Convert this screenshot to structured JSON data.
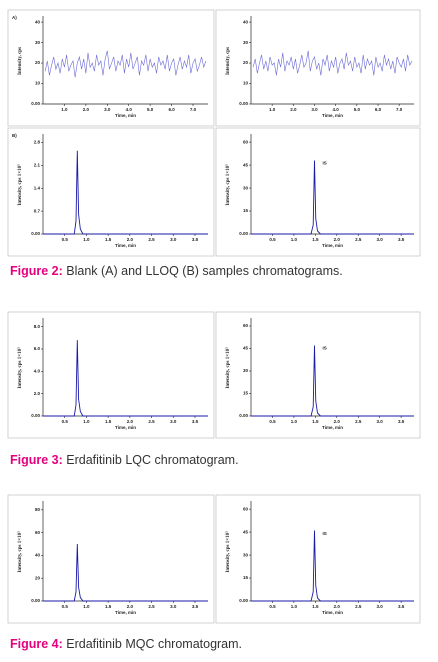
{
  "figures": [
    {
      "charts": [
        {
          "type": "line",
          "panel_label": "A)",
          "ylabel": "Intensity, cps",
          "xlabel": "Time, min",
          "xlim": [
            0,
            7.7
          ],
          "ylim": [
            0,
            42
          ],
          "xticks": [
            {
              "value": 1,
              "label": "1.0"
            },
            {
              "value": 2,
              "label": "2.0"
            },
            {
              "value": 3,
              "label": "3.0"
            },
            {
              "value": 4,
              "label": "4.0"
            },
            {
              "value": 5,
              "label": "5.0"
            },
            {
              "value": 6,
              "label": "6.0"
            },
            {
              "value": 7,
              "label": "7.0"
            }
          ],
          "yticks": [
            {
              "value": 0,
              "label": "0.00"
            },
            10,
            20,
            30,
            40
          ],
          "series": [
            {
              "color": "#6a6ad8",
              "x": [
                0.1,
                0.2,
                0.3,
                0.4,
                0.5,
                0.6,
                0.7,
                0.8,
                0.9,
                1.0,
                1.1,
                1.2,
                1.3,
                1.4,
                1.5,
                1.6,
                1.7,
                1.8,
                1.9,
                2.0,
                2.1,
                2.2,
                2.3,
                2.4,
                2.5,
                2.6,
                2.7,
                2.8,
                2.9,
                3.0,
                3.1,
                3.2,
                3.3,
                3.4,
                3.5,
                3.6,
                3.7,
                3.8,
                3.9,
                4.0,
                4.1,
                4.2,
                4.3,
                4.4,
                4.5,
                4.6,
                4.7,
                4.8,
                4.9,
                5.0,
                5.1,
                5.2,
                5.3,
                5.4,
                5.5,
                5.6,
                5.7,
                5.8,
                5.9,
                6.0,
                6.1,
                6.2,
                6.3,
                6.4,
                6.5,
                6.6,
                6.7,
                6.8,
                6.9,
                7.0,
                7.1,
                7.2,
                7.3,
                7.4,
                7.5,
                7.6
              ],
              "values": [
                16,
                21,
                14,
                19,
                23,
                17,
                20,
                15,
                22,
                18,
                24,
                16,
                19,
                21,
                13,
                20,
                23,
                17,
                22,
                15,
                25,
                18,
                20,
                16,
                24,
                19,
                21,
                14,
                22,
                26,
                17,
                20,
                23,
                16,
                21,
                19,
                24,
                15,
                22,
                18,
                25,
                17,
                20,
                23,
                14,
                21,
                19,
                24,
                16,
                22,
                18,
                20,
                15,
                23,
                19,
                21,
                17,
                24,
                16,
                20,
                22,
                14,
                19,
                23,
                17,
                21,
                18,
                24,
                15,
                20,
                22,
                16,
                19,
                23,
                18,
                21
              ]
            }
          ]
        },
        {
          "type": "line",
          "ylabel": "Intensity, cps",
          "xlabel": "Time, min",
          "xlim": [
            0,
            7.7
          ],
          "ylim": [
            0,
            42
          ],
          "xticks": [
            {
              "value": 1,
              "label": "1.0"
            },
            {
              "value": 2,
              "label": "2.0"
            },
            {
              "value": 3,
              "label": "3.0"
            },
            {
              "value": 4,
              "label": "4.0"
            },
            {
              "value": 5,
              "label": "5.0"
            },
            {
              "value": 6,
              "label": "6.0"
            },
            {
              "value": 7,
              "label": "7.0"
            }
          ],
          "yticks": [
            {
              "value": 0,
              "label": "0.00"
            },
            10,
            20,
            30,
            40
          ],
          "series": [
            {
              "color": "#6a6ad8",
              "x": [
                0.1,
                0.2,
                0.3,
                0.4,
                0.5,
                0.6,
                0.7,
                0.8,
                0.9,
                1.0,
                1.1,
                1.2,
                1.3,
                1.4,
                1.5,
                1.6,
                1.7,
                1.8,
                1.9,
                2.0,
                2.1,
                2.2,
                2.3,
                2.4,
                2.5,
                2.6,
                2.7,
                2.8,
                2.9,
                3.0,
                3.1,
                3.2,
                3.3,
                3.4,
                3.5,
                3.6,
                3.7,
                3.8,
                3.9,
                4.0,
                4.1,
                4.2,
                4.3,
                4.4,
                4.5,
                4.6,
                4.7,
                4.8,
                4.9,
                5.0,
                5.1,
                5.2,
                5.3,
                5.4,
                5.5,
                5.6,
                5.7,
                5.8,
                5.9,
                6.0,
                6.1,
                6.2,
                6.3,
                6.4,
                6.5,
                6.6,
                6.7,
                6.8,
                6.9,
                7.0,
                7.1,
                7.2,
                7.3,
                7.4,
                7.5,
                7.6
              ],
              "values": [
                18,
                22,
                15,
                20,
                24,
                17,
                21,
                16,
                23,
                19,
                20,
                14,
                22,
                18,
                25,
                16,
                21,
                19,
                23,
                17,
                22,
                15,
                19,
                24,
                18,
                20,
                26,
                16,
                21,
                23,
                17,
                20,
                14,
                22,
                19,
                24,
                16,
                21,
                18,
                23,
                15,
                20,
                22,
                17,
                25,
                19,
                21,
                16,
                23,
                18,
                20,
                15,
                24,
                17,
                22,
                19,
                21,
                14,
                23,
                18,
                20,
                16,
                24,
                19,
                22,
                17,
                21,
                15,
                23,
                20,
                18,
                22,
                16,
                24,
                19,
                21
              ]
            }
          ]
        },
        {
          "type": "line",
          "panel_label": "B)",
          "ylabel": "Intensity, cps 1×10³",
          "xlabel": "Time, min",
          "xlim": [
            0,
            3.8
          ],
          "ylim": [
            0,
            3.0
          ],
          "xticks": [
            0.5,
            {
              "value": 1,
              "label": "1.0"
            },
            1.5,
            {
              "value": 2,
              "label": "2.0"
            },
            2.5,
            {
              "value": 3,
              "label": "3.0"
            },
            3.5
          ],
          "yticks": [
            {
              "value": 0,
              "label": "0.00"
            },
            0.7,
            1.4,
            2.1,
            2.8
          ],
          "series": [
            {
              "color": "#1a1aa8",
              "x": [
                0,
                0.72,
                0.76,
                0.79,
                0.82,
                0.86,
                0.92,
                3.8
              ],
              "values": [
                0,
                0,
                0.4,
                2.55,
                0.6,
                0.15,
                0,
                0
              ]
            }
          ]
        },
        {
          "type": "line",
          "annotation": "IS",
          "ylabel": "Intensity, cps 1×10³",
          "xlabel": "Time, min",
          "xlim": [
            0,
            3.8
          ],
          "ylim": [
            0,
            64
          ],
          "xticks": [
            0.5,
            {
              "value": 1,
              "label": "1.0"
            },
            1.5,
            {
              "value": 2,
              "label": "2.0"
            },
            2.5,
            {
              "value": 3,
              "label": "3.0"
            },
            3.5
          ],
          "yticks": [
            {
              "value": 0,
              "label": "0.00"
            },
            15,
            30,
            45,
            60
          ],
          "series": [
            {
              "color": "#1a1aa8",
              "x": [
                0,
                1.4,
                1.45,
                1.48,
                1.51,
                1.55,
                1.62,
                3.8
              ],
              "values": [
                0,
                0,
                6,
                48,
                10,
                2,
                0,
                0
              ]
            }
          ]
        }
      ],
      "caption_label": "Figure 2:",
      "caption_text": " Blank (A) and LLOQ (B) samples chromatograms."
    },
    {
      "charts": [
        {
          "type": "line",
          "ylabel": "Intensity, cps 1×10³",
          "xlabel": "Time, min",
          "xlim": [
            0,
            3.8
          ],
          "ylim": [
            0,
            8.6
          ],
          "xticks": [
            0.5,
            {
              "value": 1,
              "label": "1.0"
            },
            1.5,
            {
              "value": 2,
              "label": "2.0"
            },
            2.5,
            {
              "value": 3,
              "label": "3.0"
            },
            3.5
          ],
          "yticks": [
            {
              "value": 0,
              "label": "0.00"
            },
            {
              "value": 2,
              "label": "2.0"
            },
            {
              "value": 4,
              "label": "4.0"
            },
            {
              "value": 6,
              "label": "6.0"
            },
            {
              "value": 8,
              "label": "8.0"
            }
          ],
          "series": [
            {
              "color": "#1a1aa8",
              "x": [
                0,
                0.72,
                0.76,
                0.79,
                0.82,
                0.86,
                0.92,
                3.8
              ],
              "values": [
                0,
                0,
                1,
                6.8,
                1.5,
                0.4,
                0,
                0
              ]
            }
          ]
        },
        {
          "type": "line",
          "annotation": "IS",
          "ylabel": "Intensity, cps 1×10³",
          "xlabel": "Time, min",
          "xlim": [
            0,
            3.8
          ],
          "ylim": [
            0,
            64
          ],
          "xticks": [
            0.5,
            {
              "value": 1,
              "label": "1.0"
            },
            1.5,
            {
              "value": 2,
              "label": "2.0"
            },
            2.5,
            {
              "value": 3,
              "label": "3.0"
            },
            3.5
          ],
          "yticks": [
            {
              "value": 0,
              "label": "0.00"
            },
            15,
            30,
            45,
            60
          ],
          "series": [
            {
              "color": "#1a1aa8",
              "x": [
                0,
                1.4,
                1.45,
                1.48,
                1.51,
                1.55,
                1.62,
                3.8
              ],
              "values": [
                0,
                0,
                6,
                47,
                10,
                2,
                0,
                0
              ]
            }
          ]
        }
      ],
      "caption_label": "Figure 3:",
      "caption_text": " Erdafitinib LQC chromatogram."
    },
    {
      "charts": [
        {
          "type": "line",
          "ylabel": "Intensity, cps 1×10³",
          "xlabel": "Time, min",
          "xlim": [
            0,
            3.8
          ],
          "ylim": [
            0,
            86
          ],
          "xticks": [
            0.5,
            {
              "value": 1,
              "label": "1.0"
            },
            1.5,
            {
              "value": 2,
              "label": "2.0"
            },
            2.5,
            {
              "value": 3,
              "label": "3.0"
            },
            3.5
          ],
          "yticks": [
            {
              "value": 0,
              "label": "0.00"
            },
            20,
            40,
            60,
            80
          ],
          "series": [
            {
              "color": "#1a1aa8",
              "x": [
                0,
                0.72,
                0.76,
                0.79,
                0.82,
                0.86,
                0.92,
                3.8
              ],
              "values": [
                0,
                0,
                8,
                50,
                12,
                3,
                0,
                0
              ]
            }
          ]
        },
        {
          "type": "line",
          "annotation": "IS",
          "ylabel": "Intensity, cps 1×10³",
          "xlabel": "Time, min",
          "xlim": [
            0,
            3.8
          ],
          "ylim": [
            0,
            64
          ],
          "xticks": [
            0.5,
            {
              "value": 1,
              "label": "1.0"
            },
            1.5,
            {
              "value": 2,
              "label": "2.0"
            },
            2.5,
            {
              "value": 3,
              "label": "3.0"
            },
            3.5
          ],
          "yticks": [
            {
              "value": 0,
              "label": "0.00"
            },
            15,
            30,
            45,
            60
          ],
          "series": [
            {
              "color": "#1a1aa8",
              "x": [
                0,
                1.4,
                1.45,
                1.48,
                1.51,
                1.55,
                1.62,
                3.8
              ],
              "values": [
                0,
                0,
                6,
                46,
                10,
                2,
                0,
                0
              ]
            }
          ]
        }
      ],
      "caption_label": "Figure 4:",
      "caption_text": " Erdafitinib MQC chromatogram."
    }
  ]
}
